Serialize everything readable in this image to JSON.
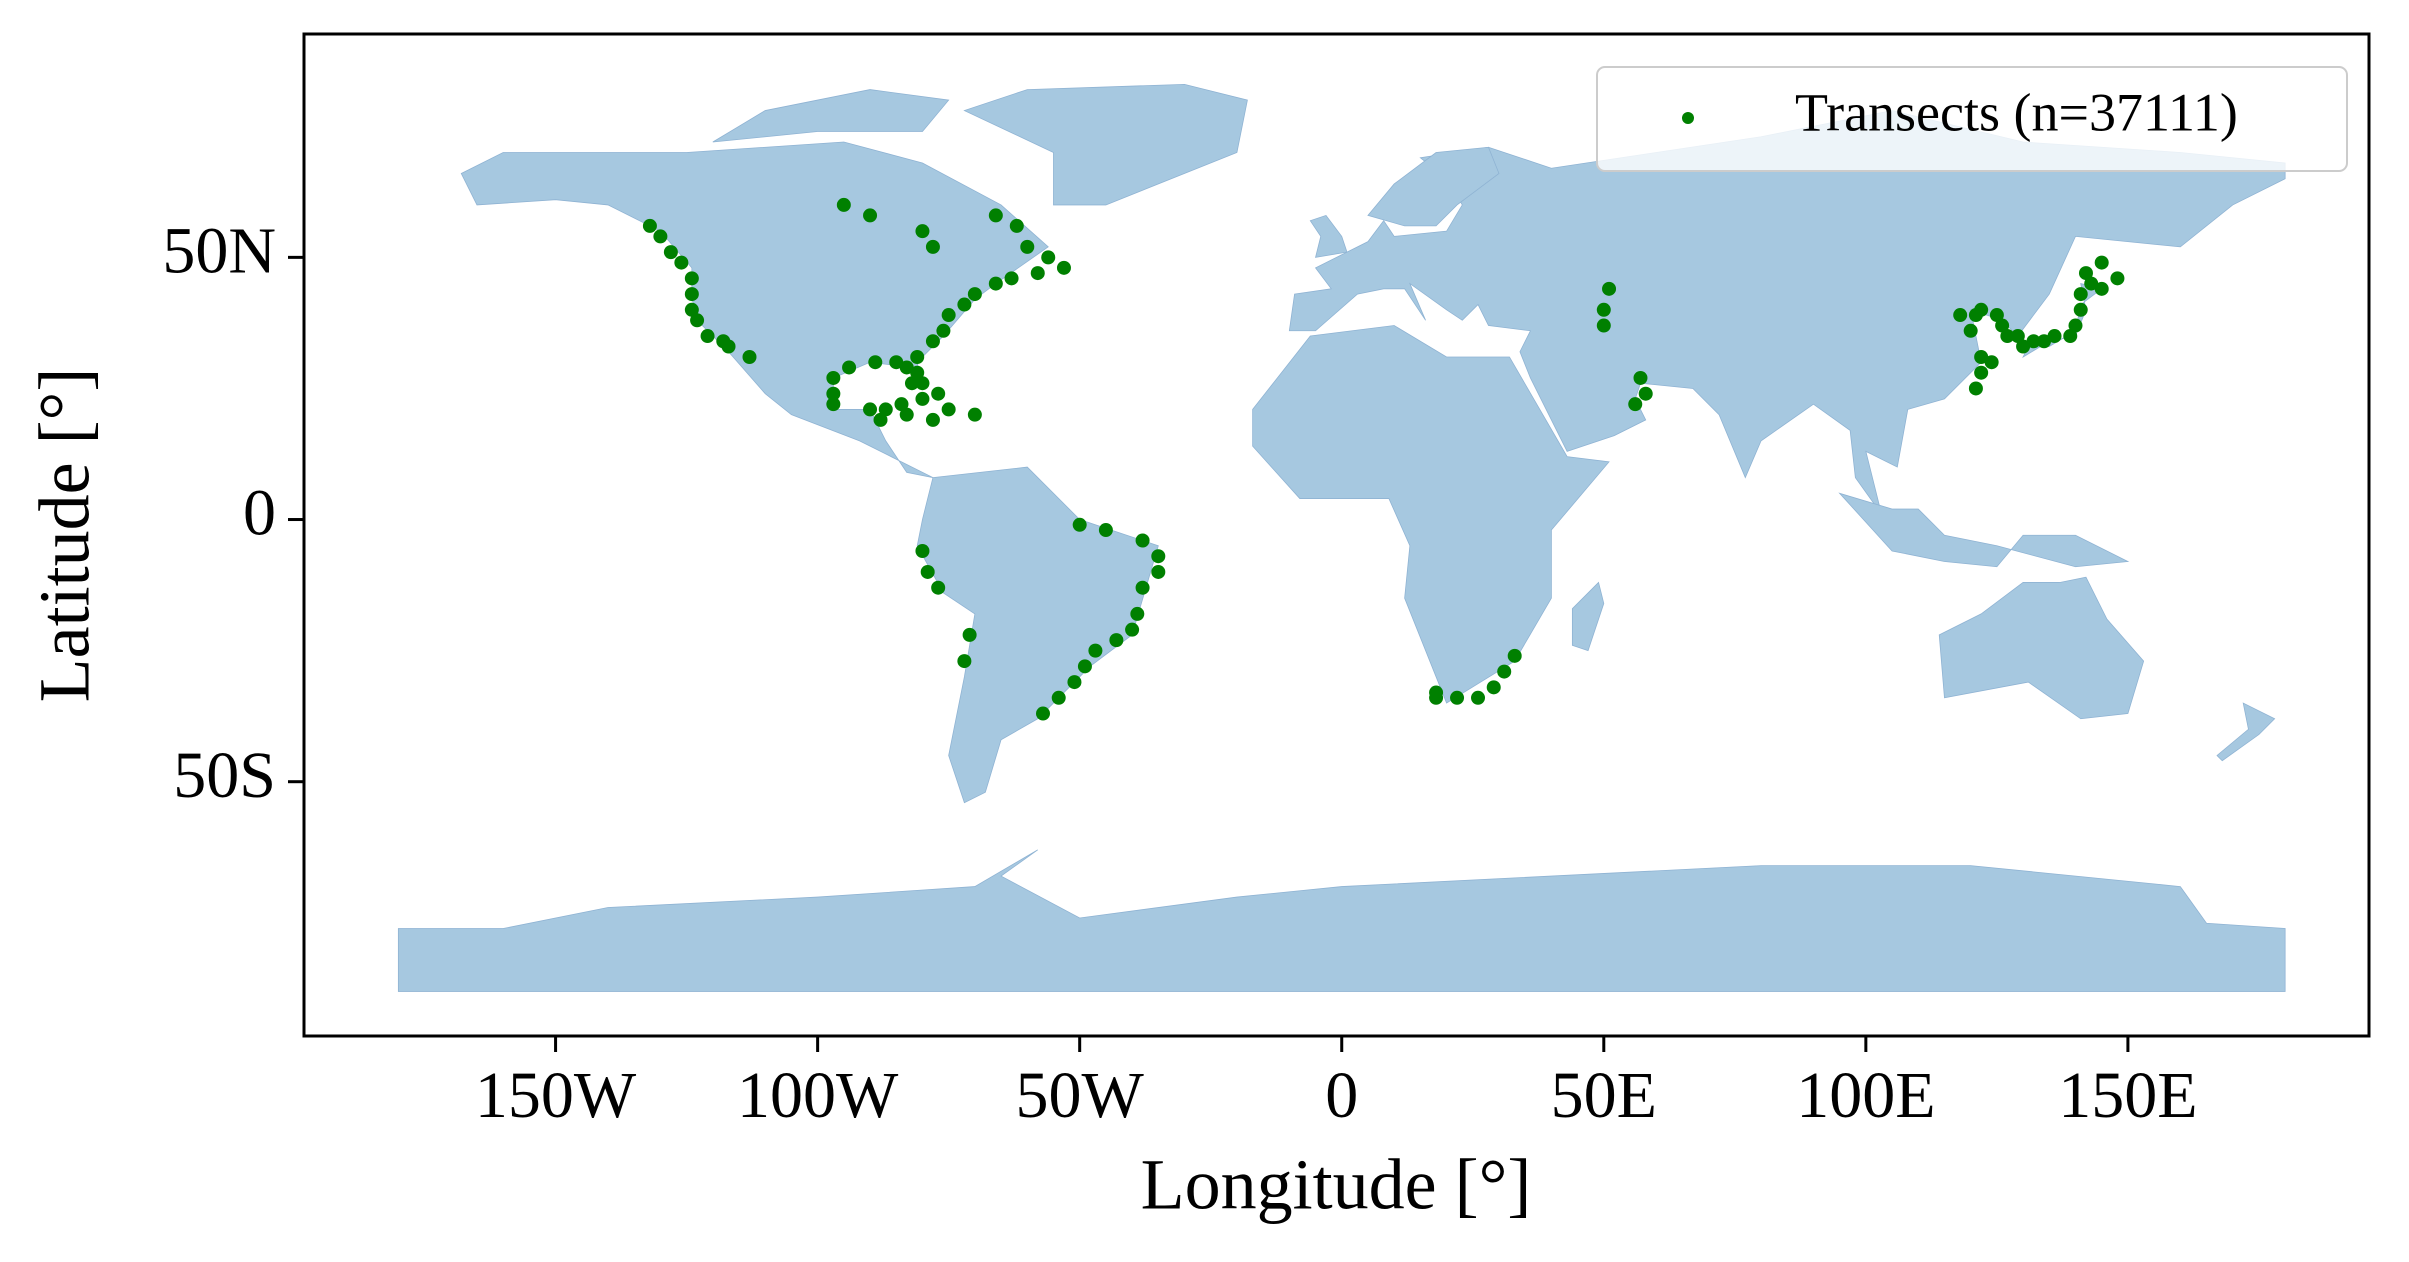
{
  "chart_data": {
    "type": "scatter",
    "x_label": "Longitude [°]",
    "y_label": "Latitude [°]",
    "xlim": [
      -198,
      196
    ],
    "ylim": [
      -98.5,
      92.6
    ],
    "xticks": [
      {
        "value": -150,
        "label": "150W"
      },
      {
        "value": -100,
        "label": "100W"
      },
      {
        "value": -50,
        "label": "50W"
      },
      0,
      {
        "value": 50,
        "label": "50E"
      },
      {
        "value": 100,
        "label": "100E"
      },
      {
        "value": 150,
        "label": "150E"
      }
    ],
    "yticks": [
      {
        "value": -50,
        "label": "50S"
      },
      0,
      {
        "value": 50,
        "label": "50N"
      }
    ],
    "legend": "upper right",
    "land_color": "#a6c8e0",
    "series": [
      {
        "name": "Transects (n=37111)",
        "color": "#008000",
        "x": [
          -132,
          -130,
          -128,
          -126,
          -124,
          -124,
          -124,
          -123,
          -121,
          -118,
          -117,
          -113,
          -95,
          -90,
          -80,
          -78,
          -66,
          -62,
          -60,
          -56,
          -53,
          -58,
          -63,
          -66,
          -70,
          -72,
          -75,
          -76,
          -78,
          -81,
          -81,
          -80,
          -82,
          -83,
          -85,
          -89,
          -94,
          -97,
          -97,
          -90,
          -87,
          -84,
          -80,
          -77,
          -75,
          -70,
          -78,
          -83,
          -88,
          -97,
          -50,
          -45,
          -38,
          -35,
          -35,
          -38,
          -39,
          -40,
          -43,
          -47,
          -49,
          -51,
          -54,
          -57,
          -80,
          -79,
          -77,
          -71,
          -72,
          18,
          18,
          22,
          26,
          29,
          31,
          33,
          51,
          50,
          50,
          57,
          58,
          56,
          118,
          121,
          122,
          125,
          126,
          127,
          129,
          130,
          132,
          134,
          136,
          139,
          140,
          141,
          141,
          143,
          145,
          142,
          145,
          148,
          122,
          122,
          121,
          124,
          120
        ],
        "values": [
          56,
          54,
          51,
          49,
          46,
          43,
          40,
          38,
          35,
          34,
          33,
          31,
          60,
          58,
          55,
          52,
          58,
          56,
          52,
          50,
          48,
          47,
          46,
          45,
          43,
          41,
          39,
          36,
          34,
          31,
          28,
          26,
          26,
          29,
          30,
          30,
          29,
          27,
          24,
          21,
          21,
          22,
          23,
          24,
          21,
          20,
          19,
          20,
          19,
          22,
          -1,
          -2,
          -4,
          -7,
          -10,
          -13,
          -18,
          -21,
          -23,
          -25,
          -28,
          -31,
          -34,
          -37,
          -6,
          -10,
          -13,
          -22,
          -27,
          -33,
          -34,
          -34,
          -34,
          -32,
          -29,
          -26,
          44,
          40,
          37,
          27,
          24,
          22,
          39,
          39,
          40,
          39,
          37,
          35,
          35,
          33,
          34,
          34,
          35,
          35,
          37,
          40,
          43,
          45,
          44,
          47,
          49,
          46,
          31,
          28,
          25,
          30,
          36
        ]
      }
    ]
  }
}
